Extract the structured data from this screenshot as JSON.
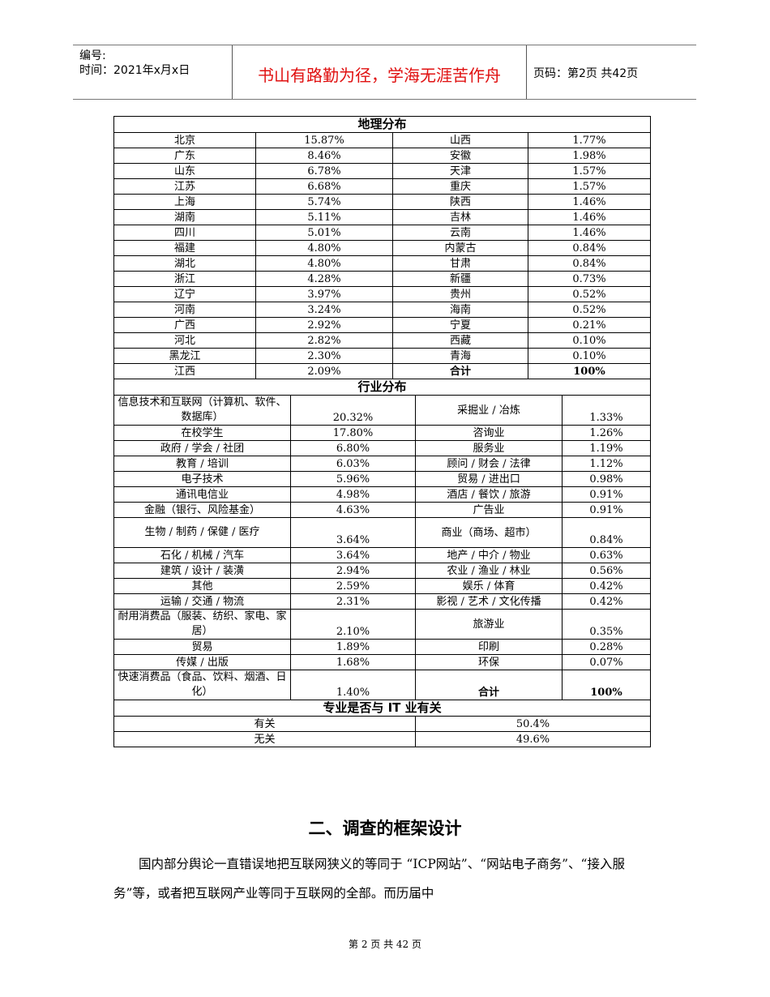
{
  "header": {
    "number_label": "编号:",
    "date_label": "时间：2021年x月x日",
    "motto": "书山有路勤为径，学海无涯苦作舟",
    "page_label": "页码：第2页 共42页"
  },
  "geo": {
    "title": "地理分布",
    "rows": [
      [
        "北京",
        "15.87%",
        "山西",
        "1.77%"
      ],
      [
        "广东",
        "8.46%",
        "安徽",
        "1.98%"
      ],
      [
        "山东",
        "6.78%",
        "天津",
        "1.57%"
      ],
      [
        "江苏",
        "6.68%",
        "重庆",
        "1.57%"
      ],
      [
        "上海",
        "5.74%",
        "陕西",
        "1.46%"
      ],
      [
        "湖南",
        "5.11%",
        "吉林",
        "1.46%"
      ],
      [
        "四川",
        "5.01%",
        "云南",
        "1.46%"
      ],
      [
        "福建",
        "4.80%",
        "内蒙古",
        "0.84%"
      ],
      [
        "湖北",
        "4.80%",
        "甘肃",
        "0.84%"
      ],
      [
        "浙江",
        "4.28%",
        "新疆",
        "0.73%"
      ],
      [
        "辽宁",
        "3.97%",
        "贵州",
        "0.52%"
      ],
      [
        "河南",
        "3.24%",
        "海南",
        "0.52%"
      ],
      [
        "广西",
        "2.92%",
        "宁夏",
        "0.21%"
      ],
      [
        "河北",
        "2.82%",
        "西藏",
        "0.10%"
      ],
      [
        "黑龙江",
        "2.30%",
        "青海",
        "0.10%"
      ],
      [
        "江西",
        "2.09%",
        "合计",
        "100%"
      ]
    ]
  },
  "industry": {
    "title": "行业分布",
    "rows": [
      [
        "信息技术和互联网（计算机、软件、数据库）",
        "20.32%",
        "采掘业 / 冶炼",
        "1.33%"
      ],
      [
        "在校学生",
        "17.80%",
        "咨询业",
        "1.26%"
      ],
      [
        "政府 / 学会 / 社团",
        "6.80%",
        "服务业",
        "1.19%"
      ],
      [
        "教育 / 培训",
        "6.03%",
        "顾问 / 财会 / 法律",
        "1.12%"
      ],
      [
        "电子技术",
        "5.96%",
        "贸易 / 进出口",
        "0.98%"
      ],
      [
        "通讯电信业",
        "4.98%",
        "酒店 / 餐饮 / 旅游",
        "0.91%"
      ],
      [
        "金融（银行、风险基金）",
        "4.63%",
        "广告业",
        "0.91%"
      ],
      [
        "生物 / 制药 / 保健 / 医疗",
        "3.64%",
        "商业（商场、超市）",
        "0.84%"
      ],
      [
        "石化 / 机械 / 汽车",
        "3.64%",
        "地产 / 中介 / 物业",
        "0.63%"
      ],
      [
        "建筑 / 设计 / 装潢",
        "2.94%",
        "农业 / 渔业 / 林业",
        "0.56%"
      ],
      [
        "其他",
        "2.59%",
        "娱乐 / 体育",
        "0.42%"
      ],
      [
        "运输 / 交通 / 物流",
        "2.31%",
        "影视 / 艺术 / 文化传播",
        "0.42%"
      ],
      [
        "耐用消费品（服装、纺织、家电、家居）",
        "2.10%",
        "旅游业",
        "0.35%"
      ],
      [
        "贸易",
        "1.89%",
        "印刷",
        "0.28%"
      ],
      [
        "传媒 / 出版",
        "1.68%",
        "环保",
        "0.07%"
      ],
      [
        "快速消费品（食品、饮料、烟酒、日化）",
        "1.40%",
        "合计",
        "100%"
      ]
    ]
  },
  "it": {
    "title": "专业是否与 IT 业有关",
    "rows": [
      [
        "有关",
        "50.4%"
      ],
      [
        "无关",
        "49.6%"
      ]
    ]
  },
  "section_heading": "二、调查的框架设计",
  "paragraph": "国内部分舆论一直错误地把互联网狭义的等同于 “ICP网站”、“网站电子商务”、“接入服务”等，或者把互联网产业等同于互联网的全部。而历届中",
  "footer": "第 2 页 共 42 页"
}
